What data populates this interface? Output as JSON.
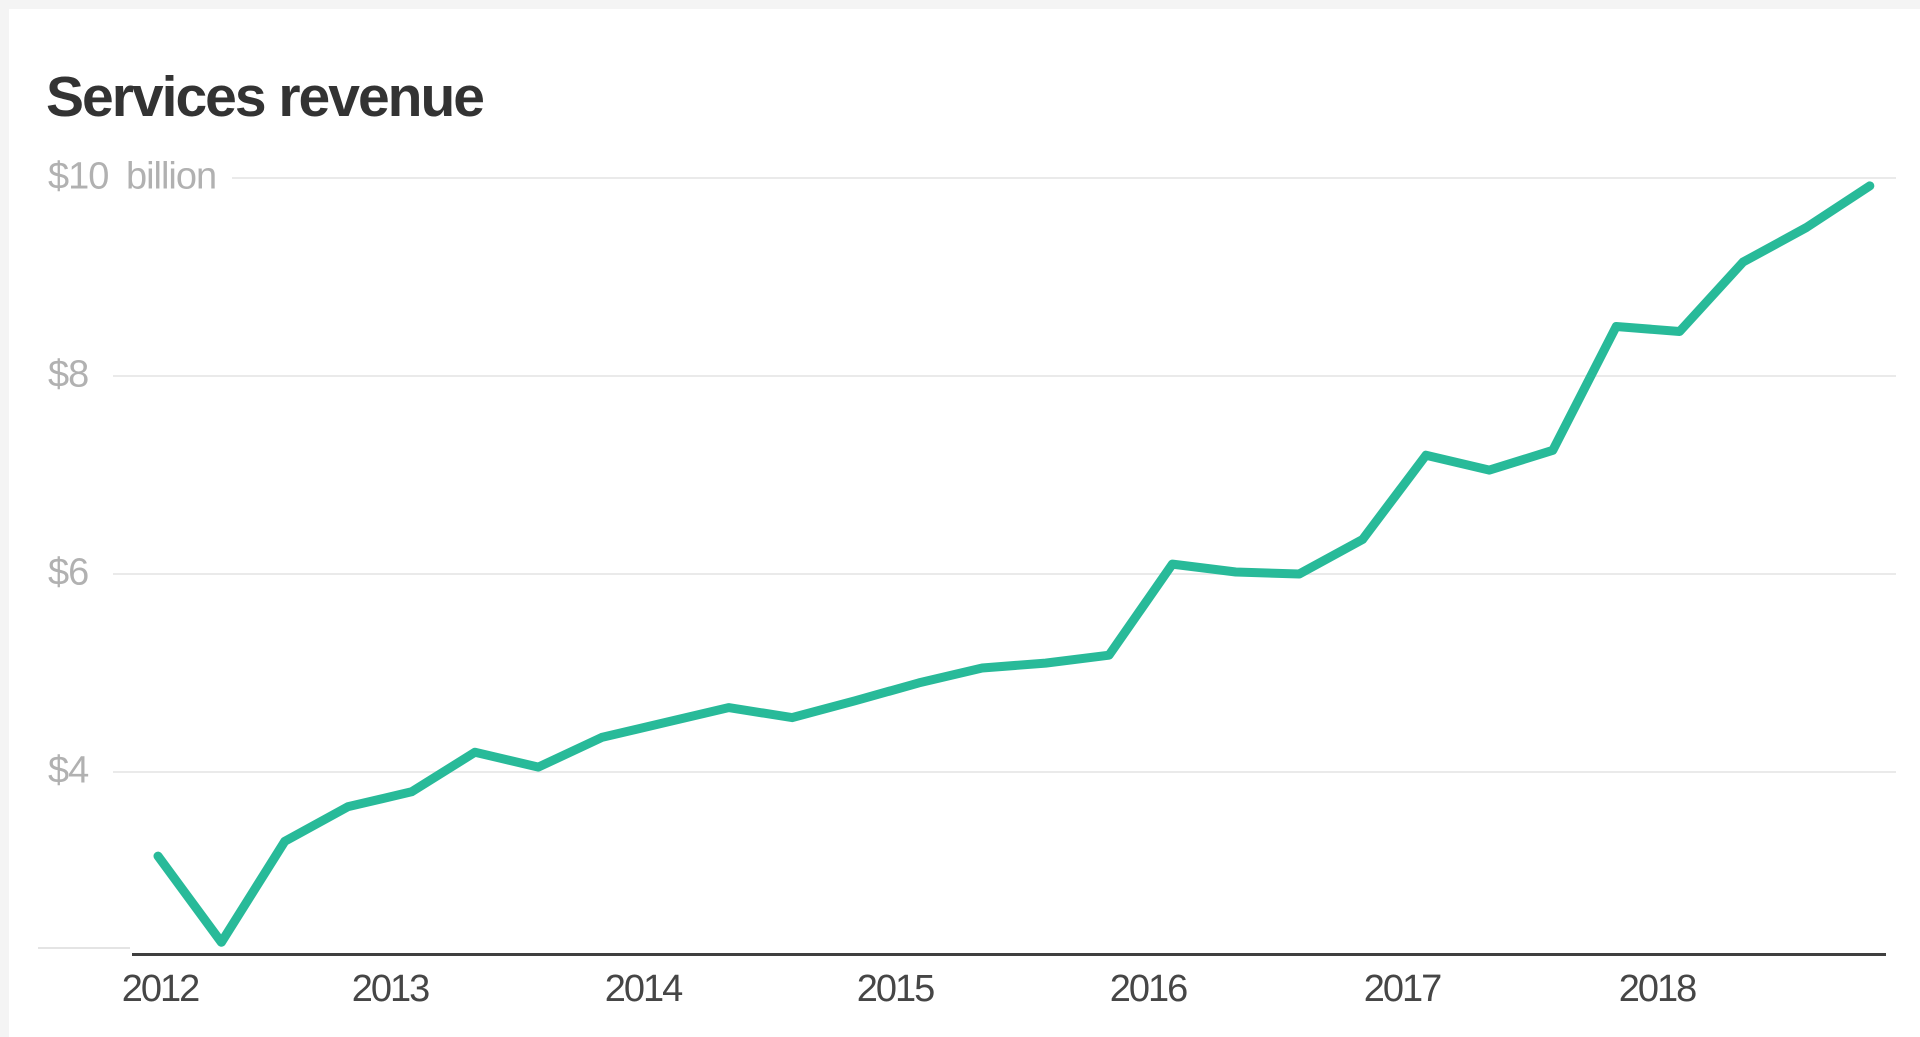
{
  "page": {
    "title": "Services revenue"
  },
  "colors": {
    "line": "#28ba99",
    "grid": "#eaeaea",
    "grid_faint": "#e4e4e4",
    "axis": "#3f3f3f",
    "title_text": "#333333",
    "y_label_text": "#b1b1b1",
    "x_label_text": "#464646",
    "page_edge": "#f4f4f4",
    "background": "#ffffff"
  },
  "chart_data": {
    "type": "line",
    "title": "Services revenue",
    "subtitle": "",
    "xlabel": "",
    "ylabel": "$ billion",
    "legend": "none",
    "grid": "horizontal",
    "x": [
      "2012 Q1",
      "2012 Q2",
      "2012 Q3",
      "2012 Q4",
      "2013 Q1",
      "2013 Q2",
      "2013 Q3",
      "2013 Q4",
      "2014 Q1",
      "2014 Q2",
      "2014 Q3",
      "2014 Q4",
      "2015 Q1",
      "2015 Q2",
      "2015 Q3",
      "2015 Q4",
      "2016 Q1",
      "2016 Q2",
      "2016 Q3",
      "2016 Q4",
      "2017 Q1",
      "2017 Q2",
      "2017 Q3",
      "2017 Q4",
      "2018 Q1",
      "2018 Q2",
      "2018 Q3",
      "2018 Q4"
    ],
    "series": [
      {
        "name": "Services revenue ($ billion)",
        "values": [
          3.15,
          2.28,
          3.3,
          3.65,
          3.8,
          4.2,
          4.05,
          4.35,
          4.5,
          4.65,
          4.55,
          4.72,
          4.9,
          5.05,
          5.1,
          5.18,
          6.1,
          6.02,
          6.0,
          6.35,
          7.2,
          7.05,
          7.25,
          8.5,
          8.45,
          9.15,
          9.5,
          9.92
        ]
      }
    ],
    "y_ticks": [
      {
        "label": "$10 billion",
        "value": 10
      },
      {
        "label": "$8",
        "value": 8
      },
      {
        "label": "$6",
        "value": 6
      },
      {
        "label": "$4",
        "value": 4
      }
    ],
    "x_ticks": [
      "2012",
      "2013",
      "2014",
      "2015",
      "2016",
      "2017",
      "2018"
    ],
    "ylim": [
      2.15,
      10.4
    ],
    "xlim": [
      "2012 Q1",
      "2018 Q4"
    ]
  }
}
